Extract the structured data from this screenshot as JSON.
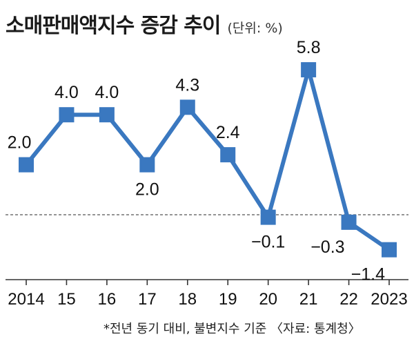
{
  "header": {
    "title": "소매판매액지수 증감 추이",
    "unit": "(단위: %)"
  },
  "footer": {
    "note": "*전년 동기 대비, 불변지수 기준 〈자료: 통계청〉"
  },
  "colors": {
    "series": "#3a78c0",
    "axis": "#333333",
    "zero_line": "#555555"
  },
  "chart_data": {
    "type": "line",
    "title": "소매판매액지수 증감 추이",
    "unit": "%",
    "categories": [
      "2014",
      "15",
      "16",
      "17",
      "18",
      "19",
      "20",
      "21",
      "22",
      "2023"
    ],
    "series": [
      {
        "values": [
          2.0,
          4.0,
          4.0,
          2.0,
          4.3,
          2.4,
          -0.1,
          5.8,
          -0.3,
          -1.4
        ],
        "labels": [
          "2.0",
          "4.0",
          "4.0",
          "2.0",
          "4.3",
          "2.4",
          "−0.1",
          "5.8",
          "−0.3",
          "−1.4"
        ]
      }
    ],
    "ylim": [
      -2.2,
      6.5
    ],
    "zero_line": "dashed",
    "grid": false,
    "legend": "none"
  }
}
